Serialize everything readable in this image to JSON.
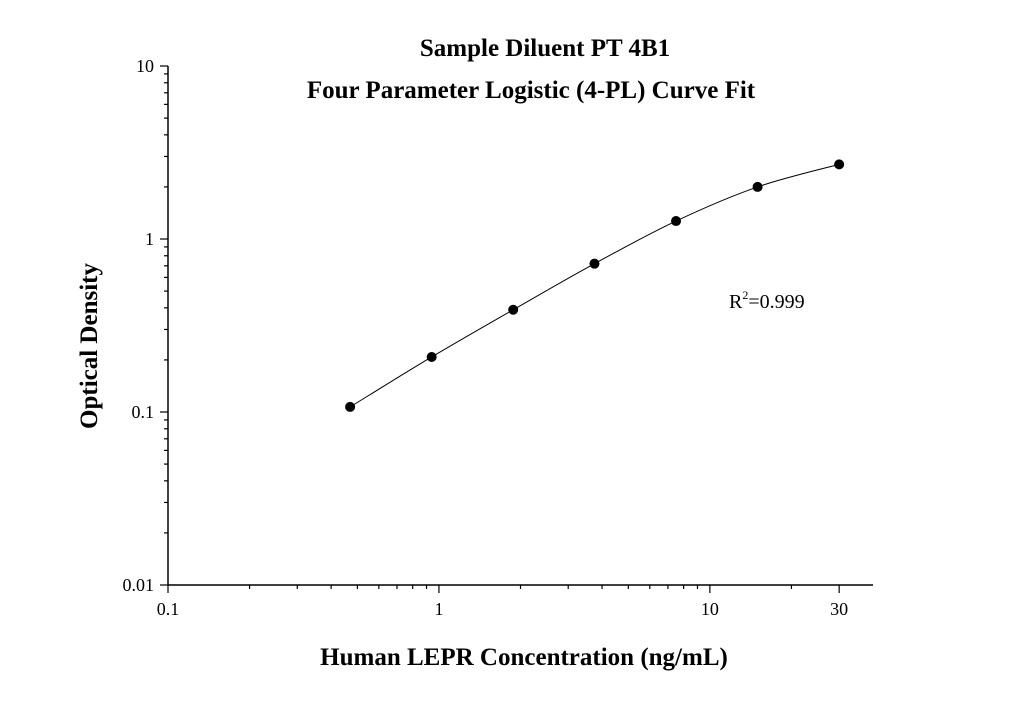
{
  "chart_data": {
    "type": "scatter",
    "title_line1": "Sample Diluent PT 4B1",
    "title_line2": "Four Parameter Logistic (4-PL) Curve Fit",
    "xlabel": "Human LEPR Concentration (ng/mL)",
    "ylabel": "Optical Density",
    "x_scale": "log",
    "y_scale": "log",
    "xlim": [
      0.1,
      40
    ],
    "ylim": [
      0.01,
      10
    ],
    "x_ticks": [
      {
        "value": 0.1,
        "label": "0.1"
      },
      {
        "value": 1,
        "label": "1"
      },
      {
        "value": 10,
        "label": "10"
      },
      {
        "value": 30,
        "label": "30"
      }
    ],
    "y_ticks": [
      {
        "value": 0.01,
        "label": "0.01"
      },
      {
        "value": 0.1,
        "label": "0.1"
      },
      {
        "value": 1,
        "label": "1"
      },
      {
        "value": 10,
        "label": "10"
      }
    ],
    "grid": false,
    "series": [
      {
        "points": [
          {
            "x": 0.47,
            "y": 0.107
          },
          {
            "x": 0.94,
            "y": 0.208
          },
          {
            "x": 1.88,
            "y": 0.39
          },
          {
            "x": 3.75,
            "y": 0.72
          },
          {
            "x": 7.5,
            "y": 1.27
          },
          {
            "x": 15,
            "y": 2.0
          },
          {
            "x": 30,
            "y": 2.7
          }
        ]
      }
    ],
    "annotation": {
      "base": "R",
      "sup": "2",
      "rest": "=0.999"
    }
  }
}
